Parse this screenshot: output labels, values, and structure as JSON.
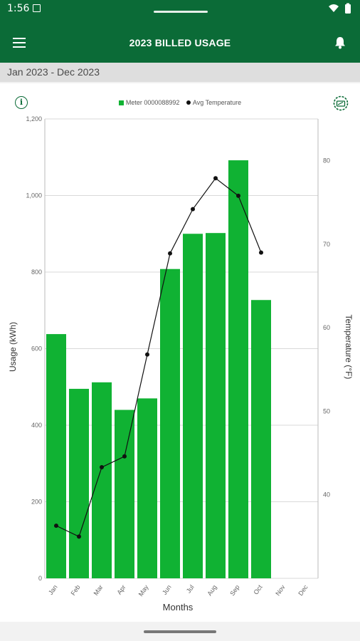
{
  "status_bar": {
    "time": "1:56"
  },
  "app_bar": {
    "title": "2023 BILLED USAGE"
  },
  "date_range": "Jan 2023 - Dec 2023",
  "icons": {
    "menu": "menu-icon",
    "bell": "bell-icon",
    "info": "info-icon",
    "gauge": "gauge-icon",
    "wifi": "wifi-icon",
    "battery": "battery-icon"
  },
  "colors": {
    "brand": "#0b6b37",
    "bar": "#10b233",
    "line": "#111111"
  },
  "chart_data": {
    "type": "bar",
    "categories": [
      "Jan",
      "Feb",
      "Mar",
      "Apr",
      "May",
      "Jun",
      "Jul",
      "Aug",
      "Sep",
      "Oct",
      "Nov",
      "Dec"
    ],
    "series": [
      {
        "name": "Meter 0000088992",
        "type": "bar",
        "axis": "left",
        "values": [
          638,
          495,
          512,
          440,
          470,
          808,
          900,
          902,
          1092,
          727,
          null,
          null
        ]
      },
      {
        "name": "Avg Temperature",
        "type": "line",
        "axis": "right",
        "values": [
          36.3,
          35.0,
          43.3,
          44.6,
          56.8,
          68.9,
          74.2,
          77.9,
          75.8,
          69.0,
          null,
          null
        ]
      }
    ],
    "xlabel": "Months",
    "ylabel": "Usage (kWh)",
    "y2label": "Temperature (°F)",
    "ylim": [
      0,
      1200
    ],
    "y2lim": [
      30,
      85
    ],
    "yticks": [
      "0",
      "200",
      "400",
      "600",
      "800",
      "1,000",
      "1,200"
    ],
    "y2ticks": [
      "40",
      "50",
      "60",
      "70",
      "80"
    ],
    "legend": "top",
    "grid": true
  }
}
